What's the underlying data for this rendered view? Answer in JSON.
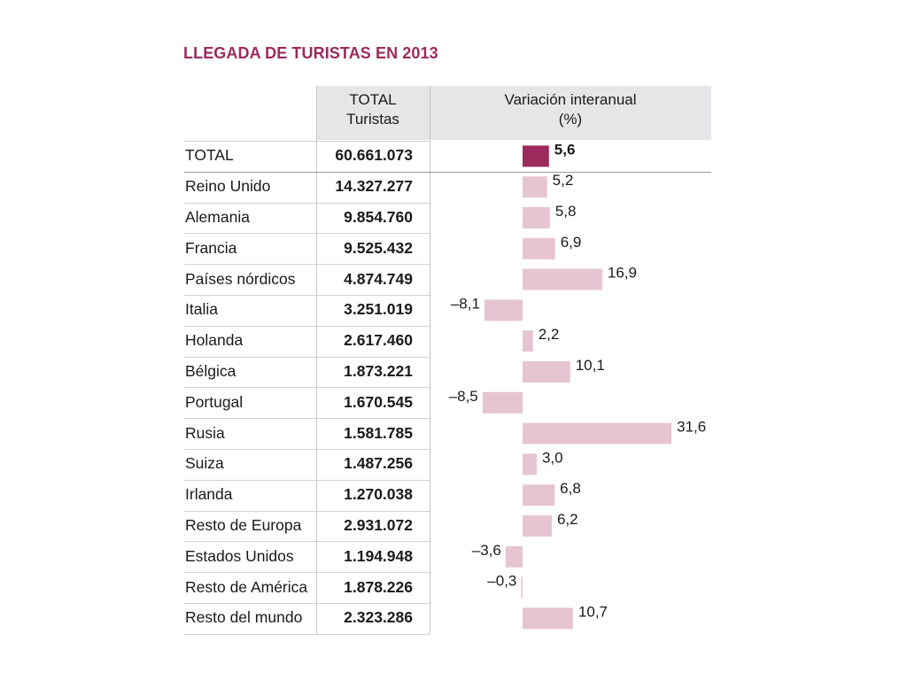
{
  "title": "LLEGADA DE TURISTAS EN 2013",
  "headers": {
    "total_line1": "TOTAL",
    "total_line2": "Turistas",
    "variation_line1": "Variación interanual",
    "variation_line2": "(%)"
  },
  "colors": {
    "title": "#9c2a5c",
    "total_bar": "#9c2a5c",
    "country_bar": "#e7c4d2",
    "header_bg": "#e6e6e8"
  },
  "chart_data": {
    "type": "table",
    "title": "LLEGADA DE TURISTAS EN 2013",
    "columns": [
      "TOTAL Turistas",
      "Variación interanual (%)"
    ],
    "rows": [
      {
        "label": "TOTAL",
        "total": "60.661.073",
        "variation": 5.6,
        "variation_label": "5,6"
      },
      {
        "label": "Reino Unido",
        "total": "14.327.277",
        "variation": 5.2,
        "variation_label": "5,2"
      },
      {
        "label": "Alemania",
        "total": "9.854.760",
        "variation": 5.8,
        "variation_label": "5,8"
      },
      {
        "label": "Francia",
        "total": "9.525.432",
        "variation": 6.9,
        "variation_label": "6,9"
      },
      {
        "label": "Países nórdicos",
        "total": "4.874.749",
        "variation": 16.9,
        "variation_label": "16,9"
      },
      {
        "label": "Italia",
        "total": "3.251.019",
        "variation": -8.1,
        "variation_label": "–8,1"
      },
      {
        "label": "Holanda",
        "total": "2.617.460",
        "variation": 2.2,
        "variation_label": "2,2"
      },
      {
        "label": "Bélgica",
        "total": "1.873.221",
        "variation": 10.1,
        "variation_label": "10,1"
      },
      {
        "label": "Portugal",
        "total": "1.670.545",
        "variation": -8.5,
        "variation_label": "–8,5"
      },
      {
        "label": "Rusia",
        "total": "1.581.785",
        "variation": 31.6,
        "variation_label": "31,6"
      },
      {
        "label": "Suiza",
        "total": "1.487.256",
        "variation": 3.0,
        "variation_label": "3,0"
      },
      {
        "label": "Irlanda",
        "total": "1.270.038",
        "variation": 6.8,
        "variation_label": "6,8"
      },
      {
        "label": "Resto de Europa",
        "total": "2.931.072",
        "variation": 6.2,
        "variation_label": "6,2"
      },
      {
        "label": "Estados Unidos",
        "total": "1.194.948",
        "variation": -3.6,
        "variation_label": "–3,6"
      },
      {
        "label": "Resto de América",
        "total": "1.878.226",
        "variation": -0.3,
        "variation_label": "–0,3"
      },
      {
        "label": "Resto del mundo",
        "total": "2.323.286",
        "variation": 10.7,
        "variation_label": "10,7"
      }
    ]
  }
}
